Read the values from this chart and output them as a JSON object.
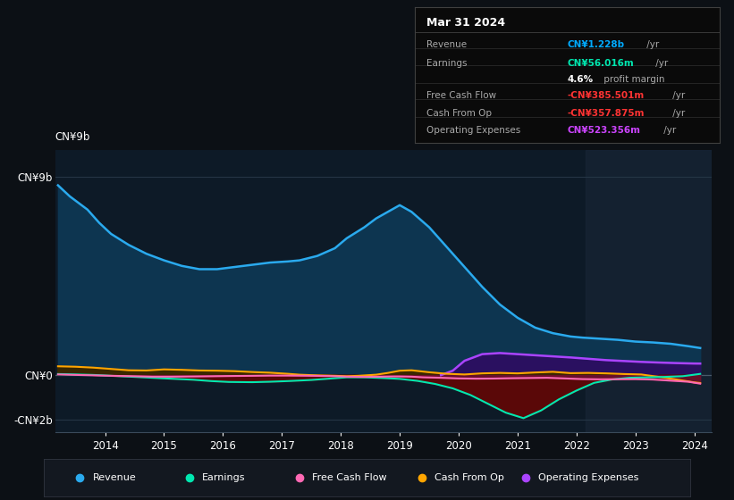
{
  "bg_color": "#0c1015",
  "plot_bg_color": "#0d1a27",
  "info_box": {
    "title": "Mar 31 2024",
    "rows": [
      {
        "label": "Revenue",
        "value": "CN¥1.228b",
        "suffix": " /yr",
        "value_color": "#00aaff"
      },
      {
        "label": "Earnings",
        "value": "CN¥56.016m",
        "suffix": " /yr",
        "value_color": "#00e8b0"
      },
      {
        "label": "",
        "value": "4.6%",
        "suffix": " profit margin",
        "value_color": "#ffffff"
      },
      {
        "label": "Free Cash Flow",
        "value": "-CN¥385.501m",
        "suffix": " /yr",
        "value_color": "#ff3333"
      },
      {
        "label": "Cash From Op",
        "value": "-CN¥357.875m",
        "suffix": " /yr",
        "value_color": "#ff3333"
      },
      {
        "label": "Operating Expenses",
        "value": "CN¥523.356m",
        "suffix": " /yr",
        "value_color": "#cc44ff"
      }
    ]
  },
  "ytick_labels": [
    "CN¥9b",
    "CN¥0",
    "-CN¥2b"
  ],
  "ytick_values": [
    9000000000,
    0,
    -2000000000
  ],
  "xtick_values": [
    2014,
    2015,
    2016,
    2017,
    2018,
    2019,
    2020,
    2021,
    2022,
    2023,
    2024
  ],
  "ylim": [
    -2600000000,
    10200000000
  ],
  "xlim": [
    2013.15,
    2024.3
  ],
  "legend": [
    {
      "label": "Revenue",
      "color": "#2aaaee"
    },
    {
      "label": "Earnings",
      "color": "#00e8b0"
    },
    {
      "label": "Free Cash Flow",
      "color": "#ff69b4"
    },
    {
      "label": "Cash From Op",
      "color": "#ffa500"
    },
    {
      "label": "Operating Expenses",
      "color": "#aa44ff"
    }
  ],
  "revenue": {
    "x": [
      2013.2,
      2013.4,
      2013.7,
      2013.9,
      2014.1,
      2014.4,
      2014.7,
      2015.0,
      2015.3,
      2015.6,
      2015.9,
      2016.2,
      2016.5,
      2016.8,
      2017.1,
      2017.3,
      2017.6,
      2017.9,
      2018.1,
      2018.4,
      2018.6,
      2018.9,
      2019.0,
      2019.2,
      2019.5,
      2019.8,
      2020.1,
      2020.4,
      2020.7,
      2021.0,
      2021.3,
      2021.6,
      2021.9,
      2022.1,
      2022.4,
      2022.7,
      2023.0,
      2023.3,
      2023.6,
      2023.9,
      2024.1
    ],
    "y": [
      8600,
      8100,
      7500,
      6900,
      6400,
      5900,
      5500,
      5200,
      4950,
      4800,
      4800,
      4900,
      5000,
      5100,
      5150,
      5200,
      5400,
      5750,
      6200,
      6700,
      7100,
      7550,
      7700,
      7400,
      6700,
      5800,
      4900,
      4000,
      3200,
      2600,
      2150,
      1900,
      1750,
      1700,
      1650,
      1600,
      1520,
      1480,
      1420,
      1310,
      1228
    ]
  },
  "earnings": {
    "x": [
      2013.2,
      2013.5,
      2013.8,
      2014.1,
      2014.5,
      2014.8,
      2015.1,
      2015.5,
      2015.8,
      2016.1,
      2016.5,
      2016.8,
      2017.1,
      2017.5,
      2017.8,
      2018.1,
      2018.4,
      2018.7,
      2019.0,
      2019.3,
      2019.6,
      2019.9,
      2020.2,
      2020.5,
      2020.8,
      2021.1,
      2021.4,
      2021.7,
      2022.0,
      2022.3,
      2022.6,
      2022.9,
      2023.2,
      2023.5,
      2023.8,
      2024.1
    ],
    "y": [
      50,
      30,
      10,
      -30,
      -80,
      -120,
      -160,
      -210,
      -270,
      -310,
      -320,
      -300,
      -270,
      -220,
      -160,
      -100,
      -100,
      -130,
      -170,
      -260,
      -400,
      -600,
      -900,
      -1300,
      -1700,
      -1950,
      -1600,
      -1100,
      -700,
      -350,
      -200,
      -120,
      -100,
      -80,
      -50,
      56
    ]
  },
  "free_cash_flow": {
    "x": [
      2013.2,
      2013.5,
      2013.8,
      2014.1,
      2014.5,
      2014.8,
      2015.1,
      2015.5,
      2015.8,
      2016.1,
      2016.5,
      2016.8,
      2017.1,
      2017.5,
      2017.8,
      2018.1,
      2018.4,
      2018.7,
      2018.9,
      2019.0,
      2019.2,
      2019.4,
      2019.7,
      2020.0,
      2020.3,
      2020.6,
      2020.9,
      2021.2,
      2021.5,
      2021.8,
      2022.1,
      2022.4,
      2022.7,
      2023.0,
      2023.3,
      2023.6,
      2023.9,
      2024.1
    ],
    "y": [
      30,
      10,
      -10,
      -30,
      -50,
      -70,
      -70,
      -60,
      -50,
      -40,
      -30,
      -20,
      -20,
      -30,
      -40,
      -70,
      -80,
      -70,
      -60,
      -60,
      -70,
      -100,
      -120,
      -150,
      -160,
      -155,
      -140,
      -130,
      -120,
      -150,
      -180,
      -190,
      -185,
      -180,
      -200,
      -250,
      -300,
      -386
    ]
  },
  "cash_from_op": {
    "x": [
      2013.2,
      2013.5,
      2013.8,
      2014.1,
      2014.4,
      2014.7,
      2015.0,
      2015.3,
      2015.6,
      2015.9,
      2016.2,
      2016.5,
      2016.8,
      2017.1,
      2017.3,
      2017.6,
      2017.9,
      2018.1,
      2018.3,
      2018.6,
      2018.8,
      2019.0,
      2019.2,
      2019.5,
      2019.8,
      2020.1,
      2020.4,
      2020.7,
      2021.0,
      2021.3,
      2021.6,
      2021.9,
      2022.2,
      2022.5,
      2022.8,
      2023.1,
      2023.4,
      2023.7,
      2024.0,
      2024.1
    ],
    "y": [
      400,
      380,
      340,
      280,
      220,
      210,
      260,
      240,
      210,
      200,
      180,
      140,
      110,
      60,
      20,
      -10,
      -30,
      -50,
      -30,
      20,
      100,
      200,
      220,
      130,
      60,
      30,
      80,
      100,
      80,
      120,
      150,
      90,
      100,
      80,
      50,
      30,
      -80,
      -200,
      -330,
      -358
    ]
  },
  "op_expenses": {
    "x": [
      2019.7,
      2019.9,
      2020.1,
      2020.4,
      2020.7,
      2021.0,
      2021.3,
      2021.6,
      2021.9,
      2022.2,
      2022.5,
      2022.8,
      2023.1,
      2023.4,
      2023.7,
      2024.0,
      2024.1
    ],
    "y": [
      0,
      200,
      650,
      950,
      1000,
      950,
      900,
      850,
      800,
      740,
      680,
      640,
      600,
      570,
      545,
      525,
      523
    ]
  },
  "shade_x_start": 2022.15,
  "shade_x_end": 2024.3,
  "colors": {
    "revenue_line": "#2aaaee",
    "revenue_fill": "#0d3550",
    "earnings_line": "#00e8b0",
    "earnings_fill_neg": "#5a0808",
    "earnings_fill_pos": "#0a3a28",
    "fcf_line": "#ff69b4",
    "fcf_fill_neg": "#6b1030",
    "cop_line": "#ffa500",
    "cop_fill_pos": "#3a2800",
    "cop_fill_neg": "#4a1500",
    "opex_line": "#aa44ff",
    "opex_fill": "#2a1060"
  }
}
